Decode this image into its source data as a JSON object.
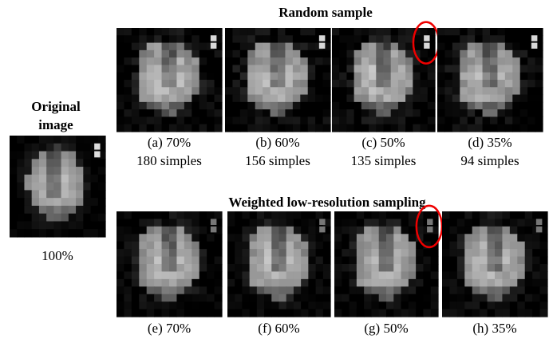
{
  "original": {
    "title_lines": [
      "Original",
      "image"
    ],
    "caption": "100%"
  },
  "random_sample": {
    "title": "Random sample",
    "panels": [
      {
        "label": "(a)  70%",
        "count": "180 simples"
      },
      {
        "label": "(b)  60%",
        "count": "156 simples"
      },
      {
        "label": "(c)  50%",
        "count": "135 simples"
      },
      {
        "label": "(d)  35%",
        "count": "94 simples"
      }
    ]
  },
  "weighted": {
    "title": "Weighted low-resolution sampling",
    "panels": [
      {
        "label": "(e)  70%"
      },
      {
        "label": "(f)  60%"
      },
      {
        "label": "(g)  50%"
      },
      {
        "label": "(h)  35%"
      }
    ]
  }
}
